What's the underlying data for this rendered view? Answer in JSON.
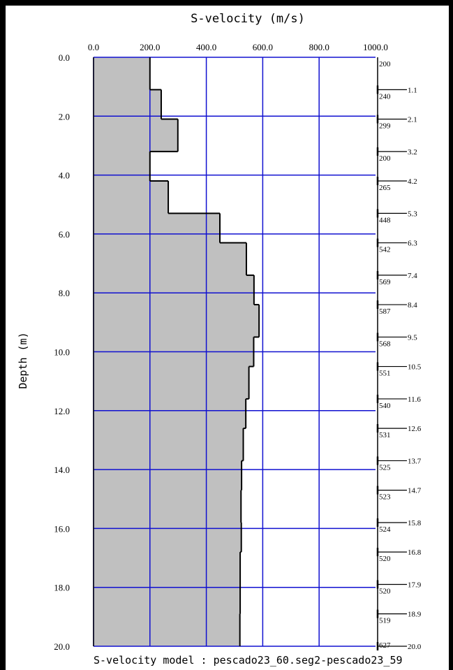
{
  "chart_data": {
    "type": "area",
    "title": "S-velocity (m/s)",
    "ylabel": "Depth (m)",
    "footer": "S-velocity model : pescado23_60.seg2-pescado23_59",
    "xlim": [
      0,
      1000
    ],
    "ylim": [
      0,
      20
    ],
    "y_inverted": true,
    "grid": true,
    "grid_color": "#1010d0",
    "fill_color": "#c0c0c0",
    "x_ticks": [
      {
        "value": 0,
        "label": "0.0"
      },
      {
        "value": 200,
        "label": "200.0"
      },
      {
        "value": 400,
        "label": "400.0"
      },
      {
        "value": 600,
        "label": "600.0"
      },
      {
        "value": 800,
        "label": "800.0"
      },
      {
        "value": 1000,
        "label": "1000.0"
      }
    ],
    "y_ticks": [
      {
        "value": 0,
        "label": "0.0"
      },
      {
        "value": 2,
        "label": "2.0"
      },
      {
        "value": 4,
        "label": "4.0"
      },
      {
        "value": 6,
        "label": "6.0"
      },
      {
        "value": 8,
        "label": "8.0"
      },
      {
        "value": 10,
        "label": "10.0"
      },
      {
        "value": 12,
        "label": "12.0"
      },
      {
        "value": 14,
        "label": "14.0"
      },
      {
        "value": 16,
        "label": "16.0"
      },
      {
        "value": 18,
        "label": "18.0"
      },
      {
        "value": 20,
        "label": "20.0"
      }
    ],
    "layers": [
      {
        "velocity": 200,
        "velocity_label": "200",
        "bottom": 1.1,
        "bottom_label": "1.1"
      },
      {
        "velocity": 240,
        "velocity_label": "240",
        "bottom": 2.1,
        "bottom_label": "2.1"
      },
      {
        "velocity": 299,
        "velocity_label": "299",
        "bottom": 3.2,
        "bottom_label": "3.2"
      },
      {
        "velocity": 200,
        "velocity_label": "200",
        "bottom": 4.2,
        "bottom_label": "4.2"
      },
      {
        "velocity": 265,
        "velocity_label": "265",
        "bottom": 5.3,
        "bottom_label": "5.3"
      },
      {
        "velocity": 448,
        "velocity_label": "448",
        "bottom": 6.3,
        "bottom_label": "6.3"
      },
      {
        "velocity": 542,
        "velocity_label": "542",
        "bottom": 7.4,
        "bottom_label": "7.4"
      },
      {
        "velocity": 569,
        "velocity_label": "569",
        "bottom": 8.4,
        "bottom_label": "8.4"
      },
      {
        "velocity": 587,
        "velocity_label": "587",
        "bottom": 9.5,
        "bottom_label": "9.5"
      },
      {
        "velocity": 568,
        "velocity_label": "568",
        "bottom": 10.5,
        "bottom_label": "10.5"
      },
      {
        "velocity": 551,
        "velocity_label": "551",
        "bottom": 11.6,
        "bottom_label": "11.6"
      },
      {
        "velocity": 540,
        "velocity_label": "540",
        "bottom": 12.6,
        "bottom_label": "12.6"
      },
      {
        "velocity": 531,
        "velocity_label": "531",
        "bottom": 13.7,
        "bottom_label": "13.7"
      },
      {
        "velocity": 525,
        "velocity_label": "525",
        "bottom": 14.7,
        "bottom_label": "14.7"
      },
      {
        "velocity": 523,
        "velocity_label": "523",
        "bottom": 15.8,
        "bottom_label": "15.8"
      },
      {
        "velocity": 524,
        "velocity_label": "524",
        "bottom": 16.8,
        "bottom_label": "16.8"
      },
      {
        "velocity": 520,
        "velocity_label": "520",
        "bottom": 17.9,
        "bottom_label": "17.9"
      },
      {
        "velocity": 520,
        "velocity_label": "520",
        "bottom": 18.9,
        "bottom_label": "18.9"
      },
      {
        "velocity": 519,
        "velocity_label": "519",
        "bottom": 20.0,
        "bottom_label": "20.0"
      }
    ],
    "halfspace_velocity_label": "627"
  }
}
